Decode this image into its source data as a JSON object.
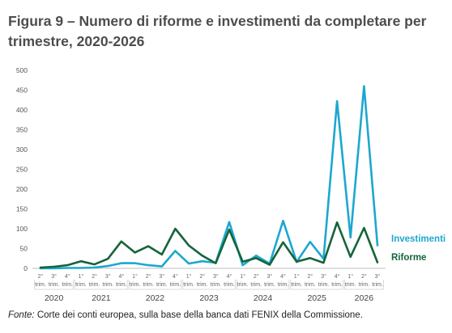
{
  "title": "Figura 9 – Numero di riforme e investimenti da completare per trimestre, 2020-2026",
  "source_label": "Fonte:",
  "source_text": "Corte dei conti europea, sulla base della banca dati FENIX della Commissione.",
  "chart_data": {
    "type": "line",
    "title": "Figura 9 – Numero di riforme e investimenti da completare per trimestre, 2020-2026",
    "xlabel": "",
    "ylabel": "",
    "ylim": [
      0,
      500
    ],
    "yticks": [
      0,
      50,
      100,
      150,
      200,
      250,
      300,
      350,
      400,
      450,
      500
    ],
    "grid": false,
    "legend": "right-inline",
    "categories": [
      "2° trim. 2020",
      "3° trim. 2020",
      "4° trim. 2020",
      "1° trim. 2021",
      "2° trim. 2021",
      "3° trim. 2021",
      "4° trim. 2021",
      "1° trim. 2022",
      "2° trim. 2022",
      "3° trim. 2022",
      "4° trim. 2022",
      "1° trim. 2023",
      "2° trim. 2023",
      "3° trim. 2023",
      "4° trim. 2023",
      "1° trim. 2024",
      "2° trim. 2024",
      "3° trim. 2024",
      "4° trim. 2024",
      "1° trim. 2025",
      "2° trim. 2025",
      "3° trim. 2025",
      "4° trim. 2025",
      "1° trim. 2026",
      "2° trim. 2026",
      "3° trim. 2026"
    ],
    "quarter_labels": [
      "2°",
      "3°",
      "4°",
      "1°",
      "2°",
      "3°",
      "4°",
      "1°",
      "2°",
      "3°",
      "4°",
      "1°",
      "2°",
      "3°",
      "4°",
      "1°",
      "2°",
      "3°",
      "4°",
      "1°",
      "2°",
      "3°",
      "4°",
      "1°",
      "2°",
      "3°"
    ],
    "quarter_suffix": "trim.",
    "years": [
      {
        "label": "2020",
        "from": 0,
        "to": 2
      },
      {
        "label": "2021",
        "from": 3,
        "to": 6
      },
      {
        "label": "2022",
        "from": 7,
        "to": 10
      },
      {
        "label": "2023",
        "from": 11,
        "to": 14
      },
      {
        "label": "2024",
        "from": 15,
        "to": 18
      },
      {
        "label": "2025",
        "from": 19,
        "to": 22
      },
      {
        "label": "2026",
        "from": 23,
        "to": 25
      }
    ],
    "series": [
      {
        "name": "Investimenti",
        "color": "#1ea7cf",
        "values": [
          0,
          0,
          1,
          1,
          2,
          6,
          13,
          13,
          8,
          5,
          44,
          12,
          18,
          14,
          117,
          8,
          32,
          12,
          120,
          16,
          67,
          24,
          422,
          78,
          460,
          58
        ]
      },
      {
        "name": "Riforme",
        "color": "#15643a",
        "values": [
          2,
          4,
          8,
          18,
          10,
          24,
          68,
          40,
          56,
          35,
          100,
          58,
          32,
          13,
          98,
          17,
          26,
          9,
          66,
          17,
          26,
          14,
          116,
          29,
          102,
          15
        ]
      }
    ]
  }
}
